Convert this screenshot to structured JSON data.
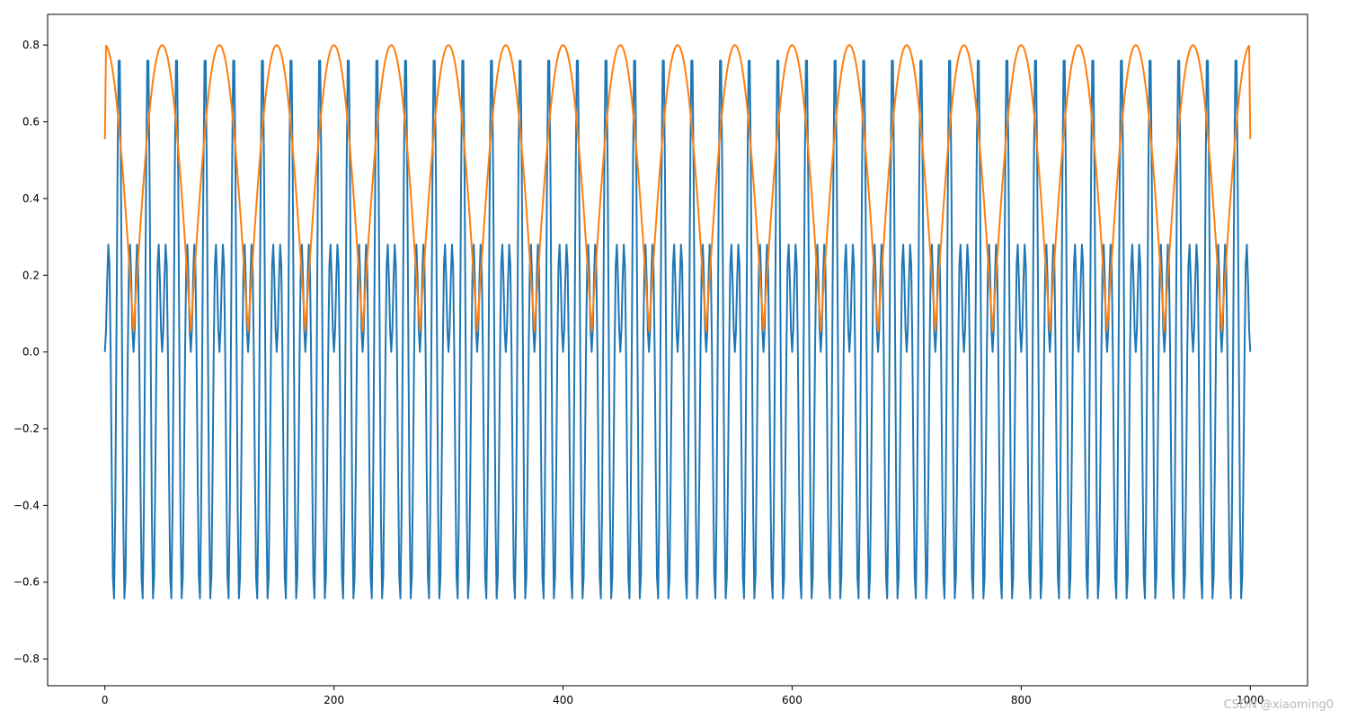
{
  "chart_data": {
    "type": "line",
    "title": "",
    "xlabel": "",
    "ylabel": "",
    "xlim": [
      -50,
      1050
    ],
    "ylim": [
      -0.87,
      0.88
    ],
    "x_ticks": [
      0,
      200,
      400,
      600,
      800,
      1000
    ],
    "x_tick_labels": [
      "0",
      "200",
      "400",
      "600",
      "800",
      "1000"
    ],
    "y_ticks": [
      -0.8,
      -0.6,
      -0.4,
      -0.2,
      0.0,
      0.2,
      0.4,
      0.6,
      0.8
    ],
    "y_tick_labels": [
      "−0.8",
      "−0.6",
      "−0.4",
      "−0.2",
      "0.0",
      "0.2",
      "0.4",
      "0.6",
      "0.8"
    ],
    "grid": false,
    "legend": "none",
    "series": [
      {
        "color": "#1f77b4",
        "n_points": 1001,
        "x_range": [
          0,
          1000
        ],
        "formula": "y = 0.8*sin(2*pi*x/50) * sin(2*pi*x/10)",
        "description": "high-frequency oscillation (period about 10) modulated by a slower sinusoid (period about 50); peaks reach about ±0.78"
      },
      {
        "color": "#ff7f0e",
        "n_points": 1001,
        "x_range": [
          0,
          1000
        ],
        "formula": "envelope of series 1",
        "description": "upper envelope: rounded arches peaking at 0.8 every 50 samples with minima near 0.05; starts and ends near 0.55"
      }
    ]
  },
  "watermark": "CSDN @xiaoming0"
}
